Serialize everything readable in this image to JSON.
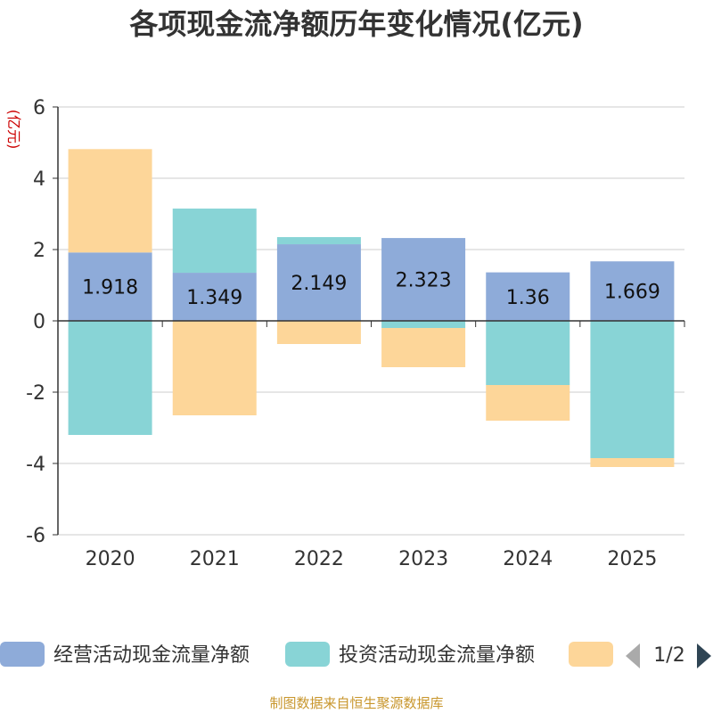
{
  "chart_data": {
    "type": "bar",
    "stacked": true,
    "title": "各项现金流净额历年变化情况(亿元)",
    "ylabel": "(亿元)",
    "ylim": [
      -6,
      6
    ],
    "yticks": [
      6,
      4,
      2,
      0,
      -2,
      -4,
      -6
    ],
    "ytick_labels": [
      "6",
      "4",
      "2",
      "0",
      "-2",
      "-4",
      "-6"
    ],
    "categories": [
      "2020",
      "2021",
      "2022",
      "2023",
      "2024",
      "2025"
    ],
    "series": [
      {
        "name": "经营活动现金流量净额",
        "color": "#8eabd9",
        "values": [
          1.918,
          1.349,
          2.149,
          2.323,
          1.36,
          1.669
        ],
        "labels": [
          "1.918",
          "1.349",
          "2.149",
          "2.323",
          "1.36",
          "1.669"
        ]
      },
      {
        "name": "投资活动现金流量净额",
        "color": "#88d4d6",
        "values": [
          -3.2,
          1.8,
          0.2,
          -0.2,
          -1.8,
          -3.85
        ]
      },
      {
        "name": "",
        "color": "#fdd699",
        "values": [
          2.9,
          -2.65,
          -0.65,
          -1.1,
          -1.0,
          -0.25
        ]
      }
    ],
    "legend": {
      "position": "bottom",
      "page": "1/2"
    },
    "grid": true
  },
  "source": "制图数据来自恒生聚源数据库"
}
